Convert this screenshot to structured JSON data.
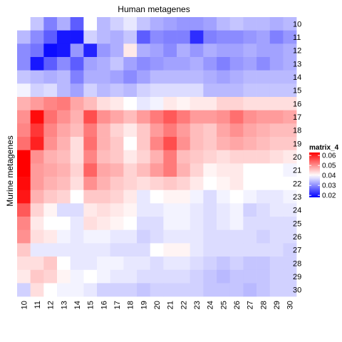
{
  "chart_data": {
    "type": "heatmap",
    "title": "Human metagenes",
    "ylabel": "Murine metagenes",
    "x_categories": [
      "10",
      "11",
      "12",
      "13",
      "14",
      "15",
      "16",
      "17",
      "18",
      "19",
      "20",
      "21",
      "22",
      "23",
      "24",
      "25",
      "26",
      "27",
      "28",
      "29",
      "30"
    ],
    "y_categories": [
      "10",
      "11",
      "12",
      "13",
      "14",
      "15",
      "16",
      "17",
      "18",
      "19",
      "20",
      "21",
      "22",
      "23",
      "24",
      "25",
      "26",
      "27",
      "28",
      "29",
      "30"
    ],
    "legend": {
      "title": "matrix_4",
      "ticks": [
        "0.06",
        "0.05",
        "0.04",
        "0.03",
        "0.02"
      ],
      "tick_values": [
        0.06,
        0.05,
        0.04,
        0.03,
        0.02
      ],
      "domain": [
        0.018,
        0.063
      ],
      "placement": "right"
    },
    "colors": {
      "low": "#0000ff",
      "mid": "#ffffff",
      "high": "#ff0000",
      "mid_value": 0.04
    },
    "values": [
      [
        0.04,
        0.035,
        0.029,
        0.033,
        0.026,
        0.04,
        0.034,
        0.036,
        0.038,
        0.035,
        0.033,
        0.032,
        0.031,
        0.031,
        0.032,
        0.034,
        0.035,
        0.034,
        0.034,
        0.033,
        0.034
      ],
      [
        0.034,
        0.03,
        0.026,
        0.02,
        0.02,
        0.036,
        0.034,
        0.033,
        0.035,
        0.026,
        0.03,
        0.029,
        0.029,
        0.022,
        0.029,
        0.03,
        0.03,
        0.031,
        0.032,
        0.029,
        0.031
      ],
      [
        0.03,
        0.028,
        0.019,
        0.02,
        0.031,
        0.021,
        0.031,
        0.033,
        0.042,
        0.033,
        0.032,
        0.03,
        0.033,
        0.031,
        0.033,
        0.032,
        0.032,
        0.033,
        0.032,
        0.032,
        0.033
      ],
      [
        0.03,
        0.02,
        0.026,
        0.03,
        0.026,
        0.032,
        0.033,
        0.035,
        0.032,
        0.03,
        0.031,
        0.032,
        0.032,
        0.033,
        0.031,
        0.029,
        0.031,
        0.032,
        0.03,
        0.032,
        0.033
      ],
      [
        0.035,
        0.034,
        0.033,
        0.034,
        0.029,
        0.033,
        0.033,
        0.032,
        0.03,
        0.032,
        0.034,
        0.034,
        0.034,
        0.034,
        0.033,
        0.032,
        0.033,
        0.034,
        0.034,
        0.034,
        0.034
      ],
      [
        0.039,
        0.036,
        0.037,
        0.034,
        0.032,
        0.036,
        0.034,
        0.035,
        0.034,
        0.036,
        0.037,
        0.037,
        0.037,
        0.037,
        0.034,
        0.034,
        0.034,
        0.035,
        0.035,
        0.035,
        0.035
      ],
      [
        0.047,
        0.049,
        0.051,
        0.052,
        0.048,
        0.046,
        0.043,
        0.042,
        0.04,
        0.038,
        0.039,
        0.042,
        0.041,
        0.042,
        0.042,
        0.044,
        0.044,
        0.043,
        0.043,
        0.043,
        0.043
      ],
      [
        0.05,
        0.062,
        0.053,
        0.05,
        0.047,
        0.056,
        0.05,
        0.048,
        0.046,
        0.049,
        0.052,
        0.055,
        0.052,
        0.049,
        0.049,
        0.05,
        0.053,
        0.05,
        0.049,
        0.049,
        0.048
      ],
      [
        0.051,
        0.058,
        0.051,
        0.048,
        0.046,
        0.052,
        0.047,
        0.044,
        0.042,
        0.045,
        0.049,
        0.052,
        0.049,
        0.046,
        0.045,
        0.048,
        0.05,
        0.048,
        0.047,
        0.046,
        0.046
      ],
      [
        0.053,
        0.06,
        0.05,
        0.047,
        0.043,
        0.053,
        0.047,
        0.045,
        0.04,
        0.045,
        0.051,
        0.056,
        0.05,
        0.046,
        0.045,
        0.047,
        0.048,
        0.047,
        0.046,
        0.045,
        0.045
      ],
      [
        0.063,
        0.05,
        0.047,
        0.046,
        0.043,
        0.051,
        0.046,
        0.045,
        0.042,
        0.044,
        0.047,
        0.052,
        0.046,
        0.045,
        0.044,
        0.043,
        0.044,
        0.044,
        0.044,
        0.043,
        0.042
      ],
      [
        0.063,
        0.049,
        0.048,
        0.047,
        0.044,
        0.054,
        0.048,
        0.047,
        0.044,
        0.046,
        0.049,
        0.052,
        0.047,
        0.044,
        0.041,
        0.042,
        0.042,
        0.04,
        0.04,
        0.04,
        0.039
      ],
      [
        0.062,
        0.049,
        0.047,
        0.046,
        0.043,
        0.05,
        0.047,
        0.045,
        0.044,
        0.043,
        0.044,
        0.045,
        0.044,
        0.042,
        0.04,
        0.041,
        0.042,
        0.04,
        0.04,
        0.04,
        0.04
      ],
      [
        0.061,
        0.047,
        0.045,
        0.044,
        0.04,
        0.045,
        0.045,
        0.044,
        0.042,
        0.038,
        0.04,
        0.041,
        0.041,
        0.039,
        0.037,
        0.039,
        0.04,
        0.039,
        0.038,
        0.038,
        0.039
      ],
      [
        0.055,
        0.044,
        0.041,
        0.037,
        0.037,
        0.042,
        0.043,
        0.042,
        0.041,
        0.038,
        0.038,
        0.039,
        0.039,
        0.038,
        0.037,
        0.038,
        0.039,
        0.036,
        0.037,
        0.038,
        0.038
      ],
      [
        0.051,
        0.042,
        0.04,
        0.04,
        0.038,
        0.043,
        0.042,
        0.041,
        0.04,
        0.037,
        0.037,
        0.039,
        0.039,
        0.038,
        0.037,
        0.038,
        0.039,
        0.037,
        0.037,
        0.037,
        0.037
      ],
      [
        0.05,
        0.043,
        0.042,
        0.039,
        0.038,
        0.039,
        0.039,
        0.038,
        0.038,
        0.036,
        0.037,
        0.038,
        0.038,
        0.038,
        0.037,
        0.037,
        0.037,
        0.037,
        0.036,
        0.037,
        0.037
      ],
      [
        0.045,
        0.038,
        0.038,
        0.038,
        0.038,
        0.038,
        0.038,
        0.037,
        0.037,
        0.037,
        0.04,
        0.041,
        0.041,
        0.038,
        0.037,
        0.037,
        0.037,
        0.037,
        0.037,
        0.037,
        0.036
      ],
      [
        0.043,
        0.043,
        0.045,
        0.04,
        0.038,
        0.038,
        0.039,
        0.039,
        0.038,
        0.038,
        0.037,
        0.038,
        0.038,
        0.037,
        0.036,
        0.035,
        0.036,
        0.035,
        0.035,
        0.036,
        0.036
      ],
      [
        0.042,
        0.045,
        0.044,
        0.041,
        0.039,
        0.04,
        0.039,
        0.038,
        0.038,
        0.037,
        0.037,
        0.037,
        0.037,
        0.036,
        0.035,
        0.034,
        0.035,
        0.035,
        0.035,
        0.036,
        0.036
      ],
      [
        0.036,
        0.043,
        0.04,
        0.039,
        0.039,
        0.038,
        0.036,
        0.036,
        0.036,
        0.035,
        0.036,
        0.036,
        0.036,
        0.036,
        0.035,
        0.035,
        0.035,
        0.034,
        0.035,
        0.036,
        0.036
      ]
    ]
  }
}
